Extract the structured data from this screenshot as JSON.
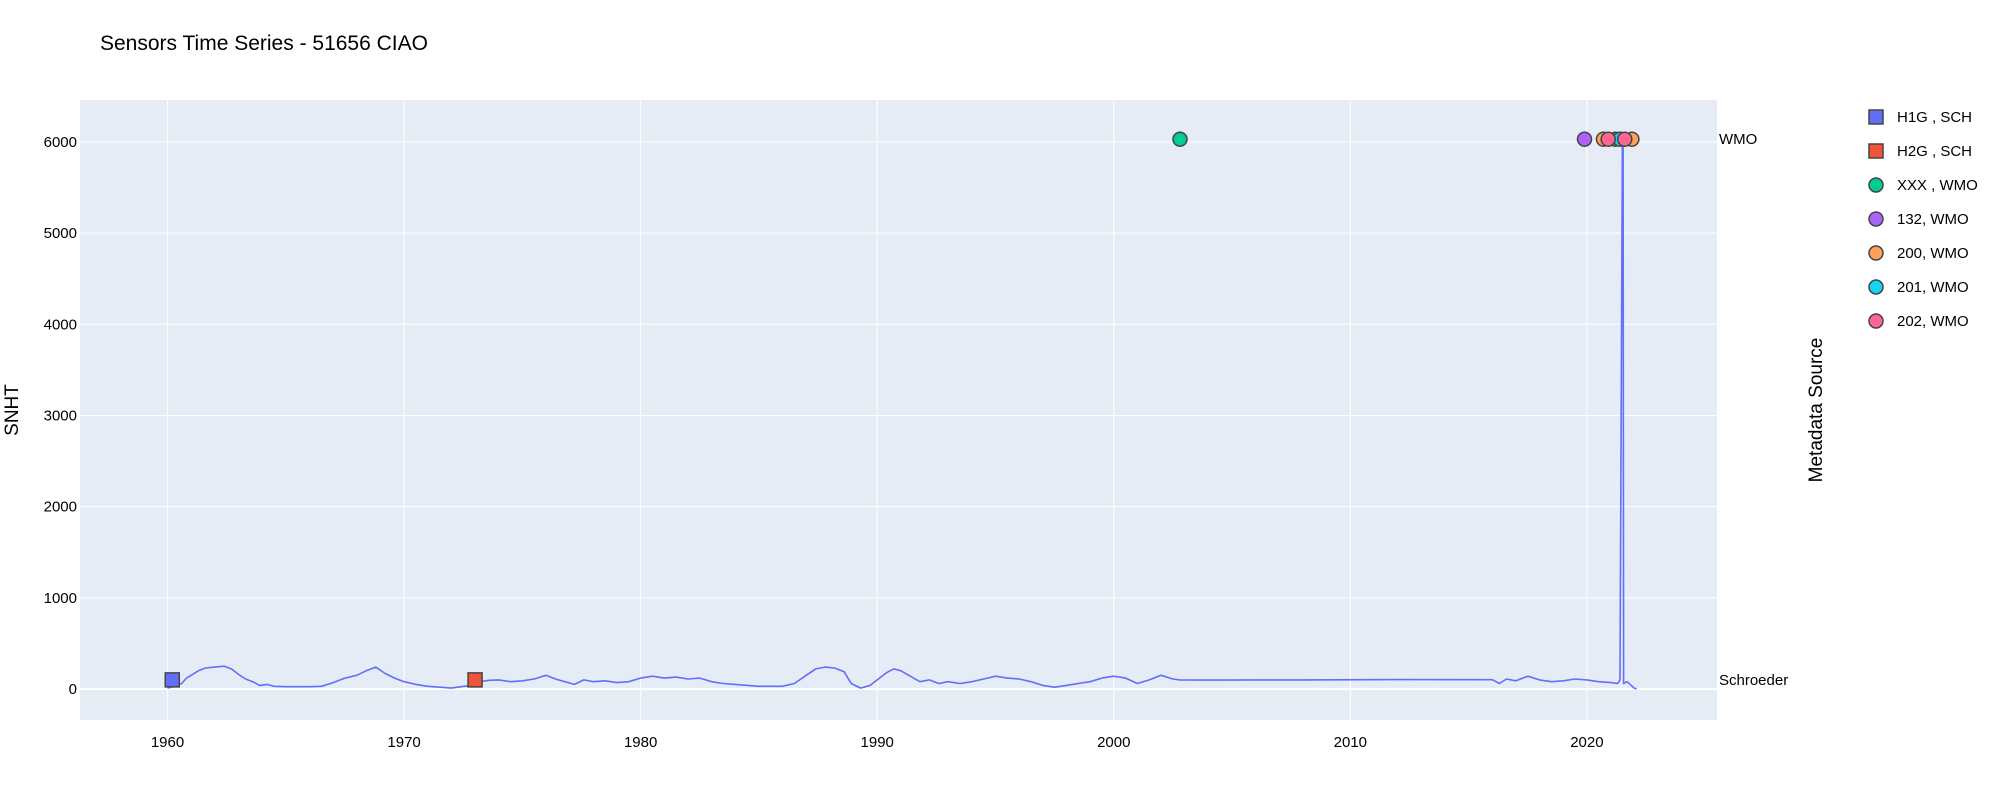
{
  "chart_data": {
    "type": "scatter",
    "title": "Sensors Time Series - 51656 CIAO",
    "ylabel": "SNHT",
    "y2label": "Metadata Source",
    "xlim": [
      1956.3,
      2025.5
    ],
    "ylim": [
      -340,
      6460
    ],
    "x_ticks": [
      1960,
      1970,
      1980,
      1990,
      2000,
      2010,
      2020
    ],
    "y_ticks": [
      0,
      1000,
      2000,
      3000,
      4000,
      5000,
      6000
    ],
    "y2_categories": [
      {
        "label": "Schroeder",
        "y": 100
      },
      {
        "label": "WMO",
        "y": 6030
      }
    ],
    "grid": true,
    "legend_position": "right",
    "line_series": {
      "color": "#636efa",
      "points": [
        [
          1960.0,
          10
        ],
        [
          1960.3,
          30
        ],
        [
          1960.6,
          60
        ],
        [
          1960.8,
          120
        ],
        [
          1961.0,
          150
        ],
        [
          1961.3,
          200
        ],
        [
          1961.6,
          230
        ],
        [
          1962.0,
          240
        ],
        [
          1962.4,
          250
        ],
        [
          1962.7,
          220
        ],
        [
          1963.0,
          160
        ],
        [
          1963.3,
          110
        ],
        [
          1963.6,
          80
        ],
        [
          1963.9,
          40
        ],
        [
          1964.2,
          50
        ],
        [
          1964.5,
          30
        ],
        [
          1965.0,
          25
        ],
        [
          1966.0,
          25
        ],
        [
          1966.5,
          30
        ],
        [
          1967.0,
          70
        ],
        [
          1967.5,
          120
        ],
        [
          1968.0,
          150
        ],
        [
          1968.4,
          200
        ],
        [
          1968.8,
          240
        ],
        [
          1969.2,
          170
        ],
        [
          1969.6,
          120
        ],
        [
          1970.0,
          80
        ],
        [
          1970.5,
          50
        ],
        [
          1971.0,
          30
        ],
        [
          1971.5,
          20
        ],
        [
          1972.0,
          10
        ],
        [
          1972.8,
          40
        ],
        [
          1973.2,
          80
        ],
        [
          1973.6,
          95
        ],
        [
          1974.0,
          100
        ],
        [
          1974.5,
          80
        ],
        [
          1975.0,
          90
        ],
        [
          1975.5,
          110
        ],
        [
          1976.0,
          150
        ],
        [
          1976.4,
          110
        ],
        [
          1976.8,
          80
        ],
        [
          1977.2,
          50
        ],
        [
          1977.6,
          100
        ],
        [
          1978.0,
          80
        ],
        [
          1978.5,
          90
        ],
        [
          1979.0,
          70
        ],
        [
          1979.5,
          80
        ],
        [
          1980.0,
          120
        ],
        [
          1980.5,
          140
        ],
        [
          1981.0,
          120
        ],
        [
          1981.5,
          130
        ],
        [
          1982.0,
          110
        ],
        [
          1982.5,
          120
        ],
        [
          1983.0,
          80
        ],
        [
          1983.5,
          60
        ],
        [
          1984.0,
          50
        ],
        [
          1985.0,
          30
        ],
        [
          1986.0,
          30
        ],
        [
          1986.5,
          60
        ],
        [
          1987.0,
          150
        ],
        [
          1987.4,
          220
        ],
        [
          1987.8,
          240
        ],
        [
          1988.2,
          230
        ],
        [
          1988.6,
          190
        ],
        [
          1988.9,
          60
        ],
        [
          1989.3,
          10
        ],
        [
          1989.7,
          40
        ],
        [
          1990.0,
          100
        ],
        [
          1990.4,
          180
        ],
        [
          1990.7,
          220
        ],
        [
          1991.0,
          200
        ],
        [
          1991.4,
          140
        ],
        [
          1991.8,
          80
        ],
        [
          1992.2,
          100
        ],
        [
          1992.6,
          60
        ],
        [
          1993.0,
          80
        ],
        [
          1993.5,
          60
        ],
        [
          1994.0,
          80
        ],
        [
          1994.5,
          110
        ],
        [
          1995.0,
          140
        ],
        [
          1995.5,
          120
        ],
        [
          1996.0,
          110
        ],
        [
          1996.5,
          80
        ],
        [
          1997.0,
          40
        ],
        [
          1997.5,
          20
        ],
        [
          1998.0,
          40
        ],
        [
          1998.5,
          60
        ],
        [
          1999.0,
          80
        ],
        [
          1999.5,
          120
        ],
        [
          2000.0,
          140
        ],
        [
          2000.5,
          120
        ],
        [
          2001.0,
          60
        ],
        [
          2001.5,
          100
        ],
        [
          2002.0,
          150
        ],
        [
          2002.5,
          110
        ],
        [
          2002.8,
          100
        ],
        [
          2004.0,
          98
        ],
        [
          2008.0,
          100
        ],
        [
          2012.0,
          103
        ],
        [
          2016.0,
          102
        ],
        [
          2016.3,
          60
        ],
        [
          2016.6,
          110
        ],
        [
          2017.0,
          90
        ],
        [
          2017.5,
          140
        ],
        [
          2018.0,
          100
        ],
        [
          2018.5,
          80
        ],
        [
          2019.0,
          90
        ],
        [
          2019.5,
          110
        ],
        [
          2020.0,
          100
        ],
        [
          2020.5,
          80
        ],
        [
          2021.0,
          70
        ],
        [
          2021.3,
          60
        ],
        [
          2021.4,
          100
        ],
        [
          2021.5,
          6030
        ],
        [
          2021.53,
          6030
        ],
        [
          2021.55,
          60
        ],
        [
          2021.7,
          80
        ],
        [
          2022.0,
          10
        ],
        [
          2022.1,
          0
        ]
      ]
    },
    "marker_series": [
      {
        "name": "H1G , SCH",
        "symbol": "square",
        "color": "#636efa",
        "points": [
          [
            1960.2,
            100
          ]
        ]
      },
      {
        "name": "H2G , SCH",
        "symbol": "square",
        "color": "#ef553b",
        "points": [
          [
            1973.0,
            100
          ]
        ]
      },
      {
        "name": "XXX , WMO",
        "symbol": "circle",
        "color": "#00cc96",
        "points": [
          [
            2002.8,
            6030
          ],
          [
            2021.2,
            6030
          ]
        ]
      },
      {
        "name": "132, WMO",
        "symbol": "circle",
        "color": "#ab63fa",
        "points": [
          [
            2019.9,
            6030
          ]
        ]
      },
      {
        "name": "200, WMO",
        "symbol": "circle",
        "color": "#ffa15a",
        "points": [
          [
            2020.7,
            6030
          ],
          [
            2021.9,
            6030
          ]
        ]
      },
      {
        "name": "201, WMO",
        "symbol": "circle",
        "color": "#19d3f3",
        "points": [
          [
            2021.4,
            6030
          ]
        ]
      },
      {
        "name": "202, WMO",
        "symbol": "circle",
        "color": "#ff6692",
        "points": [
          [
            2020.9,
            6030
          ],
          [
            2021.6,
            6030
          ]
        ]
      }
    ]
  }
}
